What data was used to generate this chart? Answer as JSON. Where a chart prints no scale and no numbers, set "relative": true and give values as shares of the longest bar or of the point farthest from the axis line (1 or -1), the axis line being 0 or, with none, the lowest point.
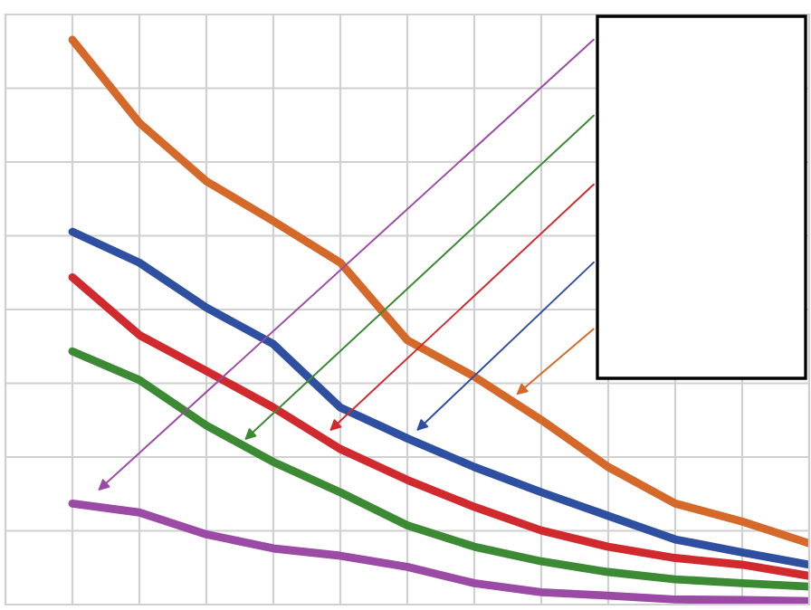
{
  "chart_data": {
    "type": "line",
    "relative": true,
    "grid": true,
    "tick_labels": false,
    "marker": "none",
    "line_style": "solid",
    "categories": [
      null,
      null,
      null,
      null,
      null,
      null,
      null,
      null,
      null,
      null,
      null,
      null
    ],
    "series": [
      {
        "color": "#d4692a",
        "values": [
          1.0,
          0.852,
          0.748,
          0.677,
          0.603,
          0.465,
          0.4,
          0.323,
          0.239,
          0.174,
          0.142,
          0.103
        ]
      },
      {
        "color": "#2f4fa0",
        "values": [
          0.658,
          0.603,
          0.523,
          0.458,
          0.345,
          0.29,
          0.239,
          0.194,
          0.152,
          0.11,
          0.087,
          0.065
        ]
      },
      {
        "color": "#d02a2e",
        "values": [
          0.577,
          0.474,
          0.41,
          0.345,
          0.271,
          0.216,
          0.168,
          0.126,
          0.097,
          0.077,
          0.065,
          0.045
        ]
      },
      {
        "color": "#3c8a34",
        "values": [
          0.445,
          0.394,
          0.313,
          0.248,
          0.194,
          0.135,
          0.097,
          0.071,
          0.052,
          0.039,
          0.032,
          0.026
        ]
      },
      {
        "color": "#9b4aa6",
        "values": [
          0.174,
          0.158,
          0.119,
          0.094,
          0.081,
          0.061,
          0.032,
          0.016,
          0.01,
          0.003,
          0.002,
          0.0
        ]
      }
    ]
  }
}
